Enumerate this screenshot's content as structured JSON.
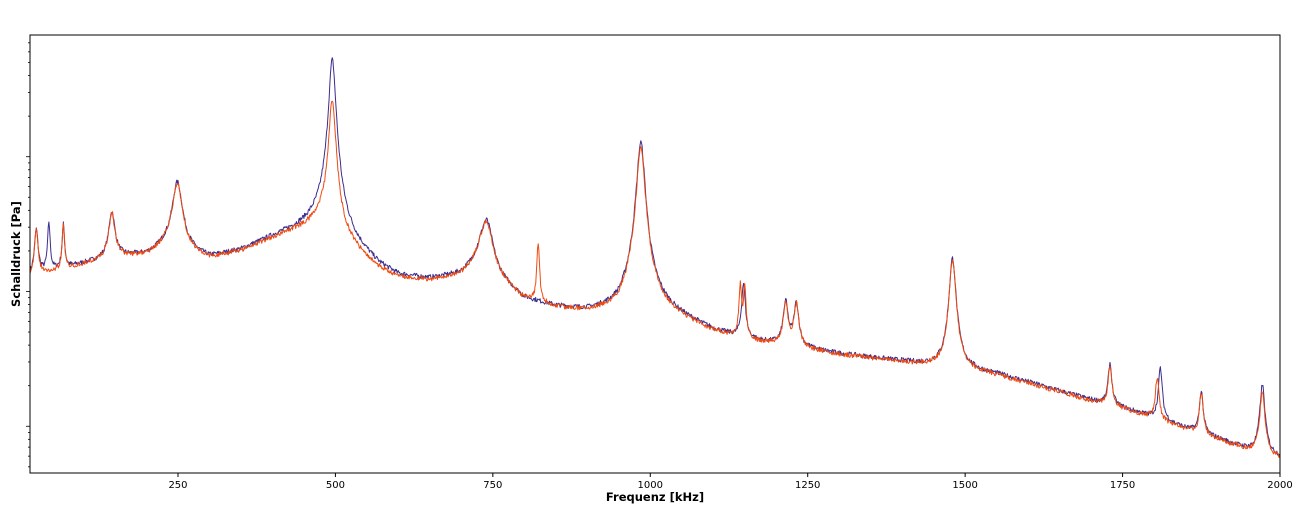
{
  "chart_data": {
    "type": "line",
    "title": "",
    "xlabel": "Frequenz [kHz]",
    "ylabel": "Schalldruck [Pa]",
    "xlim": [
      15,
      2000
    ],
    "x_ticks": [
      250,
      500,
      750,
      1000,
      1250,
      1500,
      1750,
      2000
    ],
    "x_tick_labels": [
      "250",
      "500",
      "750",
      "1000",
      "1250",
      "1500",
      "1750",
      "2000"
    ],
    "y_scale": "log",
    "y_tick_labels_shown": false,
    "grid": false,
    "legend": "none",
    "series": [
      {
        "color": "#3b2d8f",
        "baseline_points": [
          [
            15,
            1.3
          ],
          [
            60,
            1.45
          ],
          [
            100,
            1.6
          ],
          [
            150,
            1.8
          ],
          [
            200,
            1.85
          ],
          [
            230,
            2.1
          ],
          [
            300,
            1.75
          ],
          [
            350,
            2.0
          ],
          [
            400,
            2.5
          ],
          [
            450,
            3.0
          ],
          [
            480,
            3.4
          ],
          [
            495,
            2.7
          ],
          [
            530,
            2.0
          ],
          [
            570,
            1.45
          ],
          [
            600,
            1.25
          ],
          [
            650,
            1.2
          ],
          [
            700,
            1.3
          ],
          [
            730,
            1.6
          ],
          [
            760,
            1.15
          ],
          [
            800,
            0.85
          ],
          [
            850,
            0.75
          ],
          [
            900,
            0.7
          ],
          [
            950,
            0.72
          ],
          [
            975,
            0.9
          ],
          [
            1000,
            0.78
          ],
          [
            1050,
            0.62
          ],
          [
            1100,
            0.5
          ],
          [
            1150,
            0.43
          ],
          [
            1200,
            0.4
          ],
          [
            1250,
            0.37
          ],
          [
            1300,
            0.34
          ],
          [
            1350,
            0.32
          ],
          [
            1400,
            0.3
          ],
          [
            1450,
            0.28
          ],
          [
            1500,
            0.26
          ],
          [
            1550,
            0.24
          ],
          [
            1600,
            0.21
          ],
          [
            1650,
            0.18
          ],
          [
            1700,
            0.155
          ],
          [
            1750,
            0.135
          ],
          [
            1800,
            0.115
          ],
          [
            1850,
            0.095
          ],
          [
            1900,
            0.08
          ],
          [
            1950,
            0.066
          ],
          [
            1980,
            0.06
          ],
          [
            2000,
            0.058
          ]
        ],
        "peaks": [
          [
            25,
            1.55,
            3
          ],
          [
            45,
            1.85,
            2
          ],
          [
            68,
            1.65,
            2
          ],
          [
            145,
            2.1,
            5
          ],
          [
            249,
            4.5,
            8
          ],
          [
            495,
            50,
            5
          ],
          [
            740,
            1.95,
            10
          ],
          [
            985,
            12,
            6
          ],
          [
            1148,
            0.7,
            3
          ],
          [
            1215,
            0.44,
            4
          ],
          [
            1232,
            0.43,
            4
          ],
          [
            1480,
            1.5,
            5
          ],
          [
            1730,
            0.15,
            3
          ],
          [
            1810,
            0.16,
            3
          ],
          [
            1875,
            0.095,
            3
          ],
          [
            1972,
            0.14,
            4
          ]
        ]
      },
      {
        "color": "#ee4a10",
        "baseline_points": [
          [
            15,
            1.28
          ],
          [
            60,
            1.43
          ],
          [
            100,
            1.58
          ],
          [
            150,
            1.78
          ],
          [
            200,
            1.83
          ],
          [
            230,
            2.08
          ],
          [
            300,
            1.73
          ],
          [
            350,
            1.98
          ],
          [
            400,
            2.48
          ],
          [
            450,
            2.98
          ],
          [
            480,
            3.38
          ],
          [
            495,
            2.68
          ],
          [
            530,
            1.98
          ],
          [
            570,
            1.43
          ],
          [
            600,
            1.23
          ],
          [
            650,
            1.19
          ],
          [
            700,
            1.29
          ],
          [
            730,
            1.59
          ],
          [
            760,
            1.14
          ],
          [
            800,
            0.84
          ],
          [
            850,
            0.74
          ],
          [
            900,
            0.69
          ],
          [
            950,
            0.71
          ],
          [
            975,
            0.89
          ],
          [
            1000,
            0.77
          ],
          [
            1050,
            0.61
          ],
          [
            1100,
            0.49
          ],
          [
            1150,
            0.425
          ],
          [
            1200,
            0.395
          ],
          [
            1250,
            0.365
          ],
          [
            1300,
            0.335
          ],
          [
            1350,
            0.315
          ],
          [
            1400,
            0.295
          ],
          [
            1450,
            0.275
          ],
          [
            1500,
            0.255
          ],
          [
            1550,
            0.235
          ],
          [
            1600,
            0.205
          ],
          [
            1650,
            0.178
          ],
          [
            1700,
            0.152
          ],
          [
            1750,
            0.133
          ],
          [
            1800,
            0.113
          ],
          [
            1850,
            0.094
          ],
          [
            1900,
            0.079
          ],
          [
            1950,
            0.065
          ],
          [
            1980,
            0.059
          ],
          [
            2000,
            0.057
          ]
        ],
        "peaks": [
          [
            25,
            1.5,
            3
          ],
          [
            68,
            1.6,
            2
          ],
          [
            145,
            2.05,
            5
          ],
          [
            249,
            4.4,
            8
          ],
          [
            495,
            24,
            5
          ],
          [
            740,
            1.9,
            10
          ],
          [
            822,
            1.5,
            2
          ],
          [
            985,
            11,
            6
          ],
          [
            1143,
            0.7,
            2
          ],
          [
            1150,
            0.68,
            2
          ],
          [
            1215,
            0.43,
            4
          ],
          [
            1232,
            0.42,
            4
          ],
          [
            1480,
            1.45,
            5
          ],
          [
            1730,
            0.145,
            3
          ],
          [
            1805,
            0.12,
            3
          ],
          [
            1875,
            0.09,
            3
          ],
          [
            1972,
            0.12,
            4
          ]
        ]
      }
    ]
  }
}
